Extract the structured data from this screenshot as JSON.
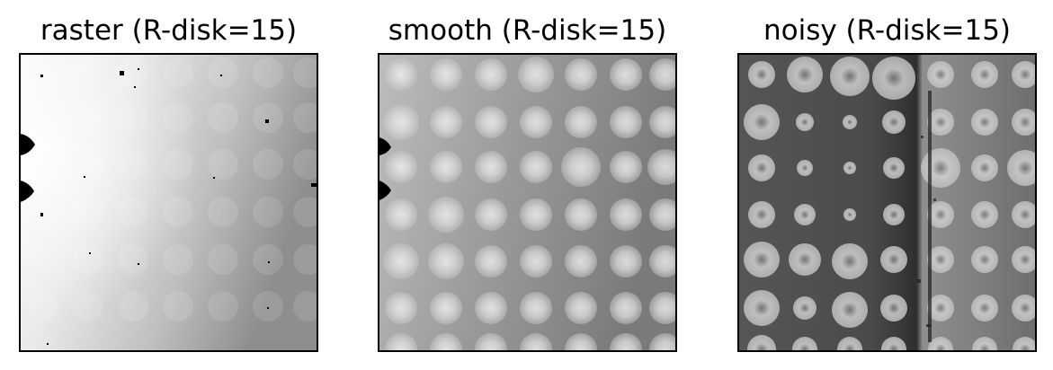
{
  "panels": [
    {
      "title": "raster (R-disk=15)",
      "render": "raster"
    },
    {
      "title": "smooth (R-disk=15)",
      "render": "smooth"
    },
    {
      "title": "noisy (R-disk=15)",
      "render": "noisy"
    }
  ],
  "colors": {
    "frame": "#000000",
    "background": "#ffffff"
  }
}
